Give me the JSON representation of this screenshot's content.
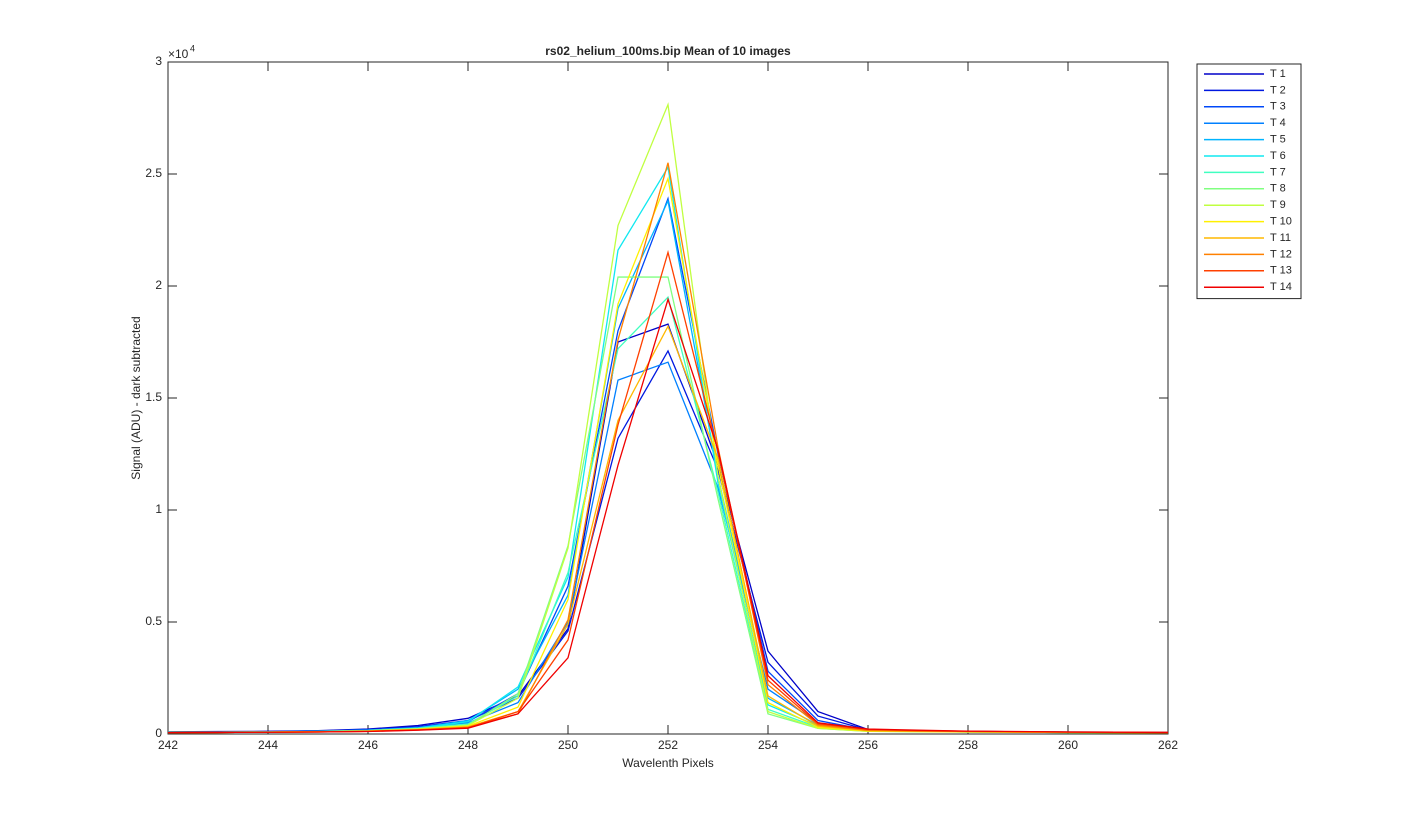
{
  "chart_data": {
    "type": "line",
    "title": "rs02_helium_100ms.bip  Mean of 10 images",
    "x_label": "Wavelenth Pixels",
    "y_label": "Signal (ADU) - dark subtracted",
    "y_multiplier": {
      "base": "×10",
      "exponent": "4"
    },
    "x": [
      242,
      243,
      244,
      245,
      246,
      247,
      248,
      249,
      250,
      251,
      252,
      253,
      254,
      255,
      256,
      257,
      258,
      259,
      260,
      261,
      262
    ],
    "xlim": [
      242,
      262
    ],
    "xticks": [
      242,
      244,
      246,
      248,
      250,
      252,
      254,
      256,
      258,
      260,
      262
    ],
    "ylim": [
      0,
      30000
    ],
    "yticks": [
      0,
      {
        "value": 5000,
        "label": "0.5"
      },
      {
        "value": 10000,
        "label": "1"
      },
      {
        "value": 15000,
        "label": "1.5"
      },
      {
        "value": 20000,
        "label": "2"
      },
      {
        "value": 25000,
        "label": "2.5"
      },
      {
        "value": 30000,
        "label": "3"
      }
    ],
    "legend": "outside-top-right",
    "series": [
      {
        "name": "T 1",
        "color": "#0000c8",
        "values": [
          100,
          110,
          120,
          150,
          220,
          380,
          700,
          1700,
          4700,
          17500,
          18300,
          12000,
          3700,
          1000,
          200,
          150,
          120,
          100,
          90,
          80,
          70
        ]
      },
      {
        "name": "T 2",
        "color": "#0018e0",
        "values": [
          90,
          100,
          110,
          140,
          200,
          330,
          600,
          1600,
          4600,
          13200,
          17100,
          11800,
          3200,
          800,
          180,
          140,
          110,
          100,
          80,
          70,
          60
        ]
      },
      {
        "name": "T 3",
        "color": "#0048f8",
        "values": [
          80,
          90,
          100,
          130,
          180,
          300,
          550,
          1800,
          6600,
          18000,
          23900,
          12500,
          2800,
          600,
          170,
          130,
          110,
          90,
          80,
          70,
          60
        ]
      },
      {
        "name": "T 4",
        "color": "#0080ff",
        "values": [
          80,
          90,
          100,
          120,
          170,
          280,
          500,
          1400,
          5000,
          15800,
          16600,
          11000,
          2000,
          500,
          150,
          120,
          100,
          90,
          80,
          70,
          60
        ]
      },
      {
        "name": "T 5",
        "color": "#00b4ff",
        "values": [
          80,
          90,
          100,
          120,
          170,
          280,
          600,
          2000,
          6200,
          19000,
          23800,
          11500,
          1600,
          400,
          150,
          120,
          100,
          90,
          80,
          70,
          60
        ]
      },
      {
        "name": "T 6",
        "color": "#10e8f0",
        "values": [
          70,
          80,
          90,
          110,
          160,
          260,
          550,
          2100,
          7000,
          21600,
          25300,
          11200,
          1300,
          350,
          140,
          110,
          90,
          80,
          70,
          60,
          50
        ]
      },
      {
        "name": "T 7",
        "color": "#40ffc0",
        "values": [
          70,
          80,
          90,
          110,
          150,
          250,
          450,
          1700,
          7200,
          17200,
          19500,
          10800,
          1100,
          300,
          130,
          110,
          90,
          80,
          70,
          60,
          50
        ]
      },
      {
        "name": "T 8",
        "color": "#80ff80",
        "values": [
          70,
          80,
          90,
          110,
          150,
          240,
          400,
          1800,
          8400,
          20400,
          20400,
          10500,
          900,
          250,
          120,
          100,
          90,
          80,
          70,
          60,
          50
        ]
      },
      {
        "name": "T 9",
        "color": "#c0ff40",
        "values": [
          70,
          80,
          90,
          100,
          140,
          230,
          380,
          1600,
          8300,
          22700,
          28100,
          11500,
          1000,
          250,
          120,
          100,
          90,
          80,
          70,
          60,
          50
        ]
      },
      {
        "name": "T 10",
        "color": "#fff000",
        "values": [
          60,
          70,
          80,
          100,
          130,
          210,
          350,
          1200,
          6000,
          19200,
          24800,
          12000,
          1400,
          300,
          130,
          110,
          90,
          80,
          70,
          60,
          50
        ]
      },
      {
        "name": "T 11",
        "color": "#ffb800",
        "values": [
          60,
          70,
          80,
          100,
          130,
          200,
          320,
          1000,
          4900,
          14000,
          18200,
          12300,
          1700,
          350,
          150,
          120,
          100,
          90,
          80,
          70,
          60
        ]
      },
      {
        "name": "T 12",
        "color": "#ff8000",
        "values": [
          60,
          70,
          80,
          90,
          120,
          190,
          300,
          900,
          5100,
          17600,
          25500,
          12800,
          2200,
          400,
          160,
          130,
          110,
          90,
          80,
          70,
          60
        ]
      },
      {
        "name": "T 13",
        "color": "#ff4000",
        "values": [
          60,
          70,
          80,
          90,
          120,
          180,
          280,
          1000,
          4200,
          13800,
          21500,
          12600,
          2400,
          450,
          200,
          150,
          120,
          100,
          90,
          80,
          70
        ]
      },
      {
        "name": "T 14",
        "color": "#f00000",
        "values": [
          60,
          70,
          80,
          90,
          110,
          170,
          260,
          900,
          3400,
          12000,
          19400,
          12700,
          2600,
          500,
          220,
          170,
          130,
          110,
          90,
          80,
          70
        ]
      }
    ]
  }
}
